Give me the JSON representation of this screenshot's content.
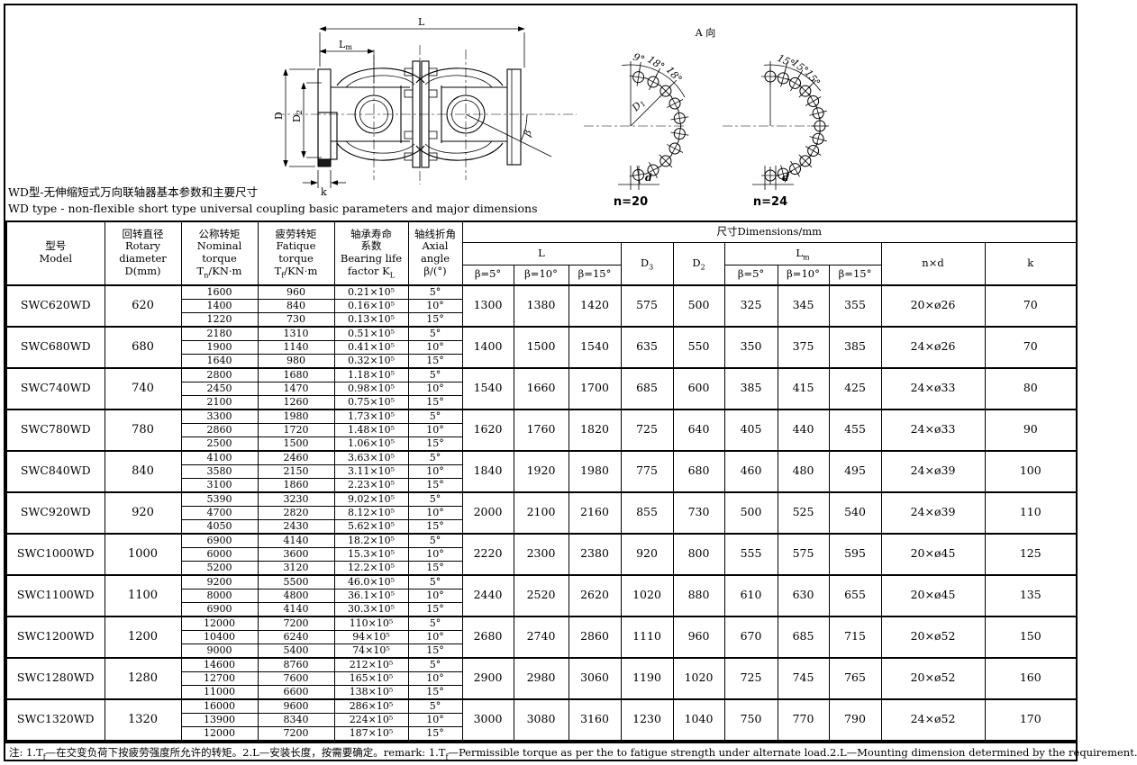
{
  "titles": {
    "zh": "WD型-无伸缩短式万向联轴器基本参数和主要尺寸",
    "en": "WD type - non-flexible short type universal coupling basic parameters and major dimensions"
  },
  "drawing": {
    "view_label": "A 向",
    "dims": {
      "L": "L",
      "Lm_base": "L",
      "Lm_sub": "m",
      "D": "D",
      "D2_base": "D",
      "D2_sub": "2",
      "D1_base": "D",
      "D1_sub": "1",
      "k": "k",
      "beta": "β"
    },
    "pattern20": {
      "angle1": "9°",
      "angle2": "18°",
      "angle3": "18°",
      "d": "d",
      "n": "n=20"
    },
    "pattern24": {
      "angle1": "15°",
      "angle2": "15°",
      "angle3": "15°",
      "d": "d",
      "n": "n=24"
    }
  },
  "table": {
    "headers": {
      "model": "型号\nModel",
      "diameter": "回转直径\nRotary\ndiameter\nD(mm)",
      "nominal": {
        "lines": "公称转矩\nNominal\ntorque",
        "base": "T",
        "sub": "n",
        "unit": "/KN·m"
      },
      "fatigue": {
        "lines": "疲劳转矩\nFatique\ntorque",
        "base": "T",
        "sub": "f",
        "unit": "/KN·m"
      },
      "bearing": {
        "lines": "轴承寿命\n系数\nBearing life",
        "base": "factor  K",
        "sub": "L"
      },
      "angle": "轴线折角\nAxial angle\nβ/(°)",
      "dims": "尺寸Dimensions/mm",
      "L": "L",
      "Lm": {
        "base": "L",
        "sub": "m"
      },
      "D3": {
        "base": "D",
        "sub": "3"
      },
      "D2": {
        "base": "D",
        "sub": "2"
      },
      "beta5": "β=5°",
      "beta10": "β=10°",
      "beta15": "β=15°",
      "nxd": "n×d",
      "k": "k"
    },
    "rows": [
      {
        "model": "SWC620WD",
        "dia": "620",
        "sub": [
          {
            "tn": "1600",
            "tf": "960",
            "kl": "0.21×10⁵",
            "beta": "5°"
          },
          {
            "tn": "1400",
            "tf": "840",
            "kl": "0.16×10⁵",
            "beta": "10°"
          },
          {
            "tn": "1220",
            "tf": "730",
            "kl": "0.13×10⁵",
            "beta": "15°"
          }
        ],
        "L": [
          "1300",
          "1380",
          "1420"
        ],
        "D3": "575",
        "D2": "500",
        "Lm": [
          "325",
          "345",
          "355"
        ],
        "nxd": "20×ø26",
        "k": "70"
      },
      {
        "model": "SWC680WD",
        "dia": "680",
        "sub": [
          {
            "tn": "2180",
            "tf": "1310",
            "kl": "0.51×10⁵",
            "beta": "5°"
          },
          {
            "tn": "1900",
            "tf": "1140",
            "kl": "0.41×10⁵",
            "beta": "10°"
          },
          {
            "tn": "1640",
            "tf": "980",
            "kl": "0.32×10⁵",
            "beta": "15°"
          }
        ],
        "L": [
          "1400",
          "1500",
          "1540"
        ],
        "D3": "635",
        "D2": "550",
        "Lm": [
          "350",
          "375",
          "385"
        ],
        "nxd": "24×ø26",
        "k": "70"
      },
      {
        "model": "SWC740WD",
        "dia": "740",
        "sub": [
          {
            "tn": "2800",
            "tf": "1680",
            "kl": "1.18×10⁵",
            "beta": "5°"
          },
          {
            "tn": "2450",
            "tf": "1470",
            "kl": "0.98×10⁵",
            "beta": "10°"
          },
          {
            "tn": "2100",
            "tf": "1260",
            "kl": "0.75×10⁵",
            "beta": "15°"
          }
        ],
        "L": [
          "1540",
          "1660",
          "1700"
        ],
        "D3": "685",
        "D2": "600",
        "Lm": [
          "385",
          "415",
          "425"
        ],
        "nxd": "24×ø33",
        "k": "80"
      },
      {
        "model": "SWC780WD",
        "dia": "780",
        "sub": [
          {
            "tn": "3300",
            "tf": "1980",
            "kl": "1.73×10⁵",
            "beta": "5°"
          },
          {
            "tn": "2860",
            "tf": "1720",
            "kl": "1.48×10⁵",
            "beta": "10°"
          },
          {
            "tn": "2500",
            "tf": "1500",
            "kl": "1.06×10⁵",
            "beta": "15°"
          }
        ],
        "L": [
          "1620",
          "1760",
          "1820"
        ],
        "D3": "725",
        "D2": "640",
        "Lm": [
          "405",
          "440",
          "455"
        ],
        "nxd": "24×ø33",
        "k": "90"
      },
      {
        "model": "SWC840WD",
        "dia": "840",
        "sub": [
          {
            "tn": "4100",
            "tf": "2460",
            "kl": "3.63×10⁵",
            "beta": "5°"
          },
          {
            "tn": "3580",
            "tf": "2150",
            "kl": "3.11×10⁵",
            "beta": "10°"
          },
          {
            "tn": "3100",
            "tf": "1860",
            "kl": "2.23×10⁵",
            "beta": "15°"
          }
        ],
        "L": [
          "1840",
          "1920",
          "1980"
        ],
        "D3": "775",
        "D2": "680",
        "Lm": [
          "460",
          "480",
          "495"
        ],
        "nxd": "24×ø39",
        "k": "100"
      },
      {
        "model": "SWC920WD",
        "dia": "920",
        "sub": [
          {
            "tn": "5390",
            "tf": "3230",
            "kl": "9.02×10⁵",
            "beta": "5°"
          },
          {
            "tn": "4700",
            "tf": "2820",
            "kl": "8.12×10⁵",
            "beta": "10°"
          },
          {
            "tn": "4050",
            "tf": "2430",
            "kl": "5.62×10⁵",
            "beta": "15°"
          }
        ],
        "L": [
          "2000",
          "2100",
          "2160"
        ],
        "D3": "855",
        "D2": "730",
        "Lm": [
          "500",
          "525",
          "540"
        ],
        "nxd": "24×ø39",
        "k": "110"
      },
      {
        "model": "SWC1000WD",
        "dia": "1000",
        "sub": [
          {
            "tn": "6900",
            "tf": "4140",
            "kl": "18.2×10⁵",
            "beta": "5°"
          },
          {
            "tn": "6000",
            "tf": "3600",
            "kl": "15.3×10⁵",
            "beta": "10°"
          },
          {
            "tn": "5200",
            "tf": "3120",
            "kl": "12.2×10⁵",
            "beta": "15°"
          }
        ],
        "L": [
          "2220",
          "2300",
          "2380"
        ],
        "D3": "920",
        "D2": "800",
        "Lm": [
          "555",
          "575",
          "595"
        ],
        "nxd": "20×ø45",
        "k": "125"
      },
      {
        "model": "SWC1100WD",
        "dia": "1100",
        "sub": [
          {
            "tn": "9200",
            "tf": "5500",
            "kl": "46.0×10⁵",
            "beta": "5°"
          },
          {
            "tn": "8000",
            "tf": "4800",
            "kl": "36.1×10⁵",
            "beta": "10°"
          },
          {
            "tn": "6900",
            "tf": "4140",
            "kl": "30.3×10⁵",
            "beta": "15°"
          }
        ],
        "L": [
          "2440",
          "2520",
          "2620"
        ],
        "D3": "1020",
        "D2": "880",
        "Lm": [
          "610",
          "630",
          "655"
        ],
        "nxd": "20×ø45",
        "k": "135"
      },
      {
        "model": "SWC1200WD",
        "dia": "1200",
        "sub": [
          {
            "tn": "12000",
            "tf": "7200",
            "kl": "110×10⁵",
            "beta": "5°"
          },
          {
            "tn": "10400",
            "tf": "6240",
            "kl": "94×10⁵",
            "beta": "10°"
          },
          {
            "tn": "9000",
            "tf": "5400",
            "kl": "74×10⁵",
            "beta": "15°"
          }
        ],
        "L": [
          "2680",
          "2740",
          "2860"
        ],
        "D3": "1110",
        "D2": "960",
        "Lm": [
          "670",
          "685",
          "715"
        ],
        "nxd": "20×ø52",
        "k": "150"
      },
      {
        "model": "SWC1280WD",
        "dia": "1280",
        "sub": [
          {
            "tn": "14600",
            "tf": "8760",
            "kl": "212×10⁵",
            "beta": "5°"
          },
          {
            "tn": "12700",
            "tf": "7600",
            "kl": "165×10⁵",
            "beta": "10°"
          },
          {
            "tn": "11000",
            "tf": "6600",
            "kl": "138×10⁵",
            "beta": "15°"
          }
        ],
        "L": [
          "2900",
          "2980",
          "3060"
        ],
        "D3": "1190",
        "D2": "1020",
        "Lm": [
          "725",
          "745",
          "765"
        ],
        "nxd": "20×ø52",
        "k": "160"
      },
      {
        "model": "SWC1320WD",
        "dia": "1320",
        "sub": [
          {
            "tn": "16000",
            "tf": "9600",
            "kl": "286×10⁵",
            "beta": "5°"
          },
          {
            "tn": "13900",
            "tf": "8340",
            "kl": "224×10⁵",
            "beta": "10°"
          },
          {
            "tn": "12000",
            "tf": "7200",
            "kl": "187×10⁵",
            "beta": "15°"
          }
        ],
        "L": [
          "3000",
          "3080",
          "3160"
        ],
        "D3": "1230",
        "D2": "1040",
        "Lm": [
          "750",
          "770",
          "790"
        ],
        "nxd": "24×ø52",
        "k": "170"
      }
    ]
  },
  "note": {
    "p1": "注: 1.T",
    "sub1": "f",
    "p2": "—在交变负荷下按疲劳强度所允许的转矩。2.L—安装长度，按需要确定。remark: 1.T",
    "sub2": "f",
    "p3": "—Permissible torque as per the to fatigue strength under alternate load.2.L—Mounting dimension determined by the requirement."
  }
}
